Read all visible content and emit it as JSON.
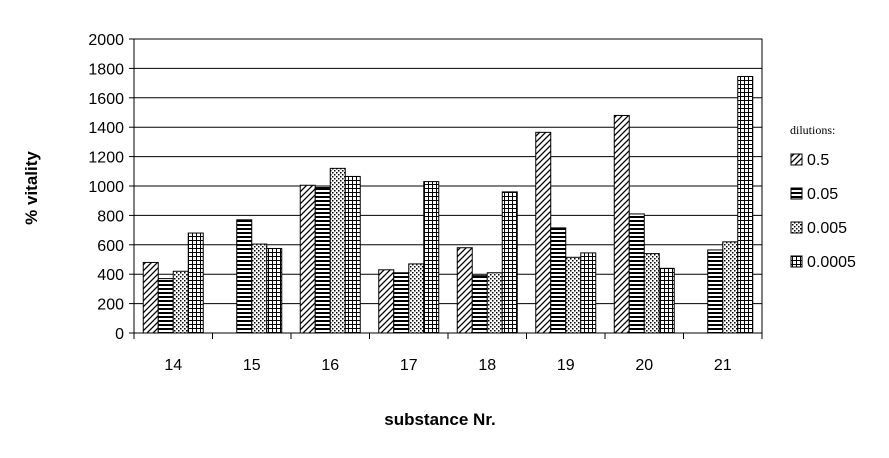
{
  "chart_data": {
    "type": "bar",
    "categories": [
      "14",
      "15",
      "16",
      "17",
      "18",
      "19",
      "20",
      "21"
    ],
    "series": [
      {
        "name": "0.5",
        "values": [
          480,
          0,
          1005,
          430,
          580,
          1365,
          1480,
          0
        ]
      },
      {
        "name": "0.05",
        "values": [
          370,
          770,
          990,
          410,
          390,
          715,
          810,
          565
        ]
      },
      {
        "name": "0.005",
        "values": [
          420,
          605,
          1120,
          470,
          410,
          515,
          540,
          620
        ]
      },
      {
        "name": "0.0005",
        "values": [
          680,
          575,
          1065,
          1030,
          960,
          545,
          440,
          1745
        ]
      }
    ],
    "xlabel": "substance Nr.",
    "ylabel": "% vitality",
    "ylim": [
      0,
      2000
    ],
    "yticks": [
      0,
      200,
      400,
      600,
      800,
      1000,
      1200,
      1400,
      1600,
      1800,
      2000
    ],
    "legend": {
      "title": "dilutions:",
      "position": "right"
    },
    "grid": "horizontal",
    "series_patterns": [
      "diagonal-hatch",
      "horizontal-lines",
      "dots",
      "grid"
    ]
  }
}
